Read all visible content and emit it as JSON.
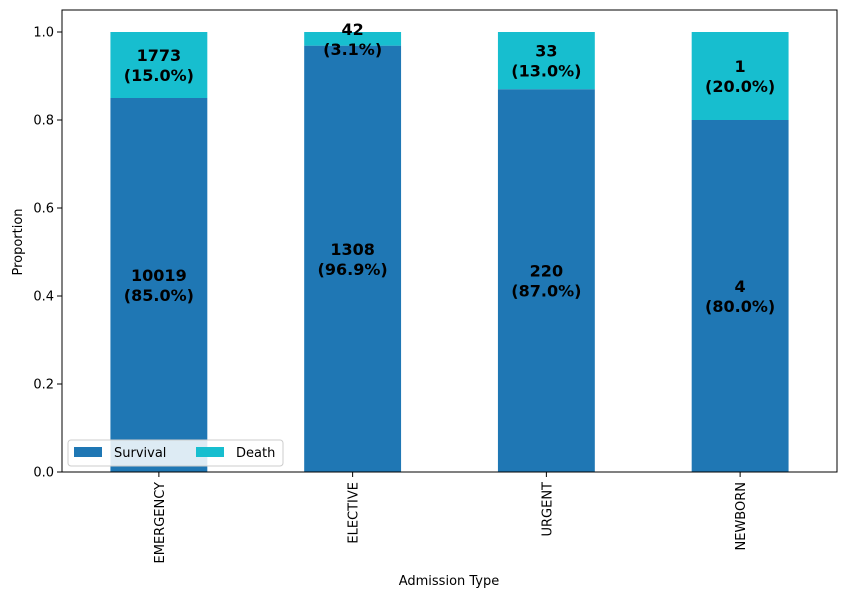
{
  "chart_data": {
    "type": "bar",
    "stacked": true,
    "categories": [
      "EMERGENCY",
      "ELECTIVE",
      "URGENT",
      "NEWBORN"
    ],
    "series": [
      {
        "name": "Survival",
        "values": [
          0.85,
          0.969,
          0.87,
          0.8
        ],
        "labels": [
          "10019\n(85.0%)",
          "1308\n(96.9%)",
          "220\n(87.0%)",
          "4\n(80.0%)"
        ]
      },
      {
        "name": "Death",
        "values": [
          0.15,
          0.031,
          0.13,
          0.2
        ],
        "labels": [
          "1773\n(15.0%)",
          "42\n(3.1%)",
          "33\n(13.0%)",
          "1\n(20.0%)"
        ]
      }
    ],
    "xlabel": "Admission Type",
    "ylabel": "Proportion",
    "ylim": [
      0,
      1.05
    ],
    "yticks": [
      "0.0",
      "0.2",
      "0.4",
      "0.6",
      "0.8",
      "1.0"
    ],
    "ytick_values": [
      0,
      0.2,
      0.4,
      0.6,
      0.8,
      1.0
    ],
    "legend": {
      "position": "lower-left",
      "entries": [
        "Survival",
        "Death"
      ]
    },
    "colors": {
      "Survival": "#1f77b4",
      "Death": "#17becf"
    }
  }
}
